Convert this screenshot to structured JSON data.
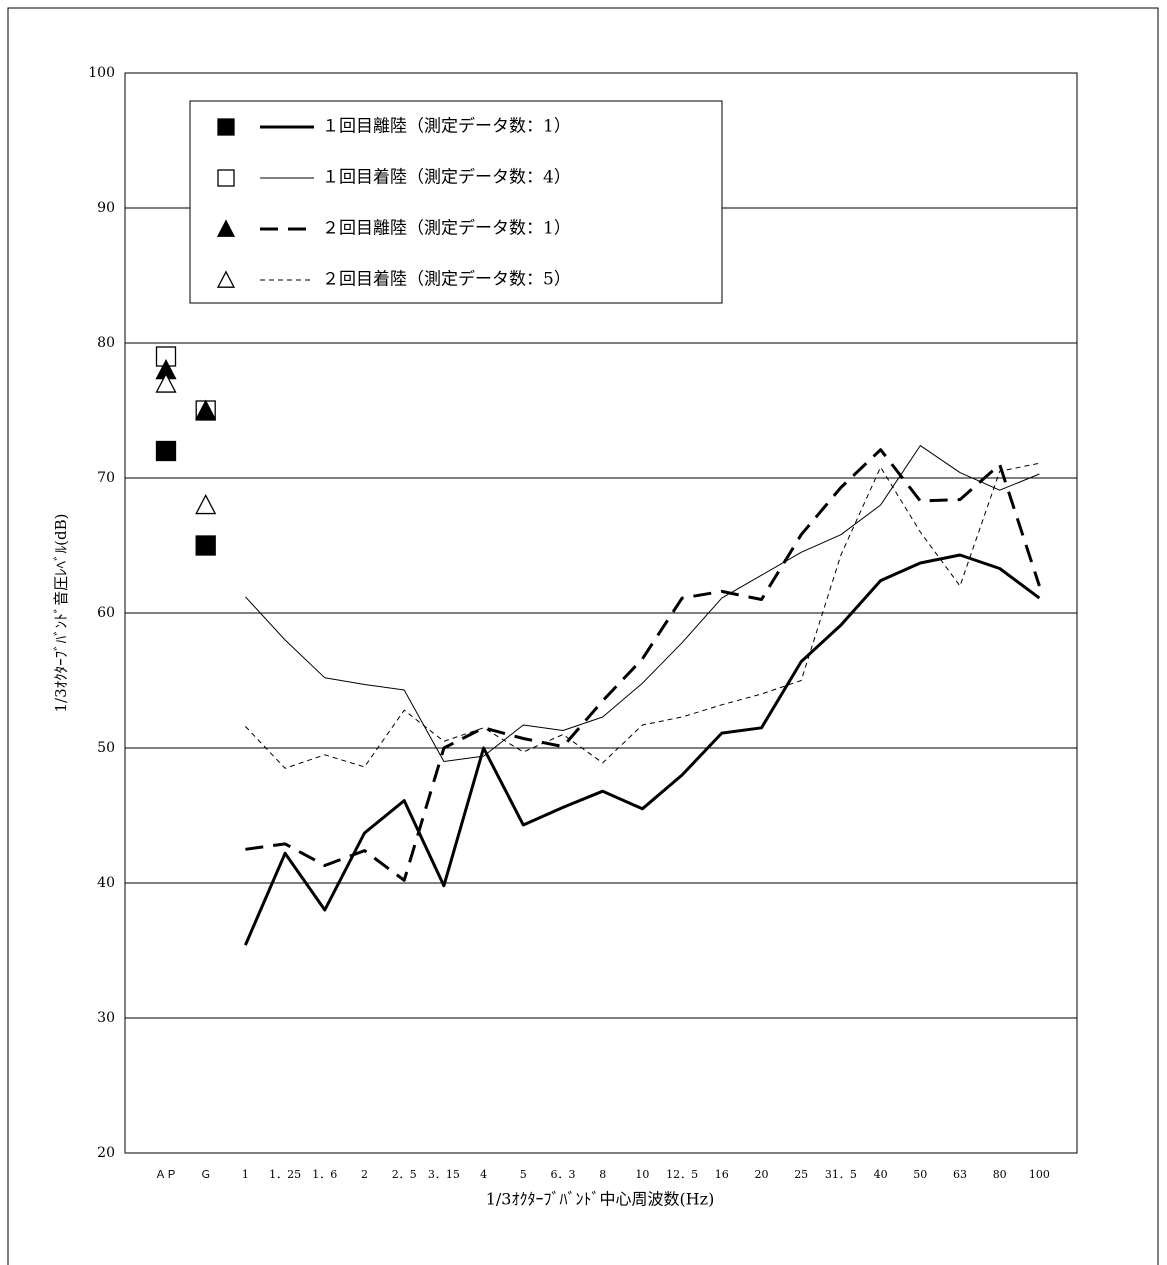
{
  "chart_data": {
    "type": "line",
    "y_label": "1/3ｵｸﾀｰﾌﾞﾊﾞﾝﾄﾞ音圧ﾚﾍﾞﾙ(dB)",
    "x_label": "1/3ｵｸﾀｰﾌﾞﾊﾞﾝﾄﾞ中心周波数(Hz)",
    "point_categories": [
      "ＡＰ",
      "Ｇ"
    ],
    "categories": [
      "1",
      "1．25",
      "1．6",
      "2",
      "2．5",
      "3．15",
      "4",
      "5",
      "6．3",
      "8",
      "10",
      "12．5",
      "16",
      "20",
      "25",
      "31．5",
      "40",
      "50",
      "63",
      "80",
      "100"
    ],
    "ylim": [
      20,
      100
    ],
    "yticks": [
      20,
      30,
      40,
      50,
      60,
      70,
      80,
      90,
      100
    ],
    "grid": true,
    "series": [
      {
        "name": "１回目離陸（測定データ数：1）",
        "color": "#000000",
        "marker": "square-filled",
        "line_width": 3,
        "dash": null,
        "point_values": [
          72,
          65
        ],
        "values": [
          35.4,
          42.2,
          38.0,
          43.7,
          46.1,
          39.8,
          50.0,
          44.3,
          45.6,
          46.8,
          45.5,
          48.0,
          51.1,
          51.5,
          56.4,
          59.1,
          62.4,
          63.7,
          64.3,
          63.3,
          61.1
        ]
      },
      {
        "name": "１回目着陸（測定データ数：4）",
        "color": "#000000",
        "marker": "square-open",
        "line_width": 1,
        "dash": null,
        "point_values": [
          79,
          75
        ],
        "values": [
          61.2,
          58.0,
          55.2,
          54.7,
          54.3,
          49.0,
          49.4,
          51.7,
          51.3,
          52.3,
          54.8,
          57.8,
          61.1,
          62.8,
          64.5,
          65.8,
          68.0,
          72.4,
          70.4,
          69.1,
          70.3
        ]
      },
      {
        "name": "２回目離陸（測定データ数：1）",
        "color": "#000000",
        "marker": "triangle-filled",
        "line_width": 3,
        "dash": [
          18,
          10
        ],
        "point_values": [
          78,
          75
        ],
        "values": [
          42.5,
          42.9,
          41.3,
          42.4,
          40.2,
          50.0,
          51.5,
          50.7,
          50.1,
          53.5,
          56.6,
          61.1,
          61.6,
          61.0,
          65.8,
          69.3,
          72.1,
          68.3,
          68.4,
          71.0,
          62.0
        ]
      },
      {
        "name": "２回目着陸（測定データ数：5）",
        "color": "#000000",
        "marker": "triangle-open",
        "line_width": 1,
        "dash": [
          5,
          4
        ],
        "point_values": [
          77,
          68
        ],
        "values": [
          51.6,
          48.5,
          49.5,
          48.6,
          52.8,
          50.5,
          51.5,
          49.7,
          51.0,
          48.9,
          51.7,
          52.3,
          53.2,
          54.0,
          55.0,
          64.3,
          70.8,
          66.0,
          62.0,
          70.5,
          71.1
        ]
      }
    ]
  }
}
